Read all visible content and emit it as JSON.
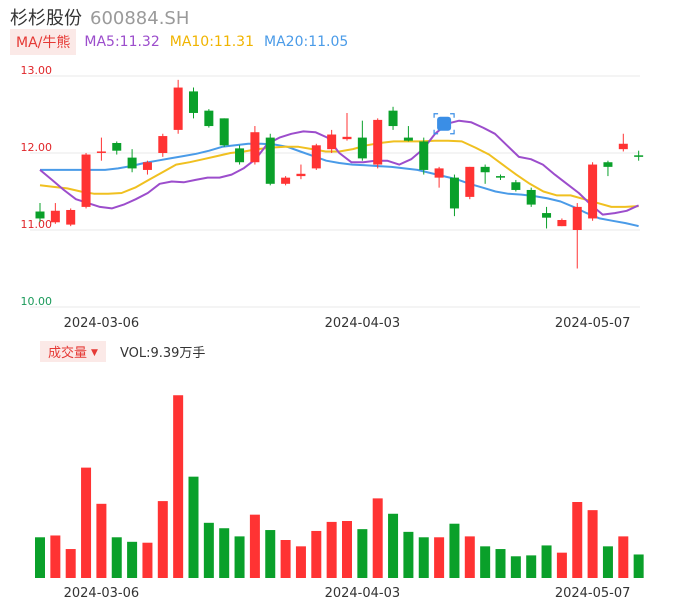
{
  "header": {
    "name": "杉杉股份",
    "code": "600884.SH"
  },
  "ma_legend": {
    "tag": "MA/牛熊",
    "ma5": "MA5:11.32",
    "ma10": "MA10:11.31",
    "ma20": "MA20:11.05"
  },
  "volume_legend": {
    "tag": "成交量",
    "vol": "VOL:9.39万手"
  },
  "colors": {
    "up": "#ff3333",
    "down": "#0aa02a",
    "ma5": "#9c4dcc",
    "ma10": "#f0c020",
    "ma20": "#4a9be8",
    "grid": "#e8e8e8",
    "axis_label": "#e0262a"
  },
  "chart_data": [
    {
      "type": "candlestick",
      "y_ticks": [
        "13.00",
        "12.00",
        "11.00",
        "10.00"
      ],
      "y_tick_values": [
        13,
        12,
        11,
        10
      ],
      "ylim": [
        10,
        13
      ],
      "x_ticks": [
        {
          "index": 4,
          "label": "2024-03-06"
        },
        {
          "index": 21,
          "label": "2024-04-03"
        },
        {
          "index": 36,
          "label": "2024-05-07"
        }
      ],
      "candles": [
        [
          11.24,
          11.15,
          11.35,
          11.1
        ],
        [
          11.1,
          11.25,
          11.35,
          11.08
        ],
        [
          11.07,
          11.26,
          11.28,
          11.05
        ],
        [
          11.3,
          11.98,
          12.0,
          11.28
        ],
        [
          12.02,
          12.02,
          12.2,
          11.9
        ],
        [
          12.13,
          12.03,
          12.15,
          11.98
        ],
        [
          11.94,
          11.8,
          12.05,
          11.75
        ],
        [
          11.78,
          11.88,
          11.9,
          11.72
        ],
        [
          12.0,
          12.22,
          12.25,
          11.95
        ],
        [
          12.3,
          12.85,
          12.95,
          12.25
        ],
        [
          12.8,
          12.52,
          12.85,
          12.45
        ],
        [
          12.55,
          12.35,
          12.57,
          12.33
        ],
        [
          12.45,
          12.1,
          12.45,
          12.08
        ],
        [
          12.06,
          11.88,
          12.1,
          11.85
        ],
        [
          11.88,
          12.27,
          12.35,
          11.85
        ],
        [
          12.2,
          11.6,
          12.25,
          11.58
        ],
        [
          11.6,
          11.68,
          11.7,
          11.58
        ],
        [
          11.7,
          11.73,
          11.85,
          11.66
        ],
        [
          11.8,
          12.1,
          12.12,
          11.78
        ],
        [
          12.05,
          12.24,
          12.3,
          12.0
        ],
        [
          12.18,
          12.21,
          12.52,
          12.16
        ],
        [
          12.2,
          11.93,
          12.42,
          11.9
        ],
        [
          11.85,
          12.43,
          12.45,
          11.8
        ],
        [
          12.55,
          12.35,
          12.6,
          12.3
        ],
        [
          12.2,
          12.16,
          12.35,
          12.15
        ],
        [
          12.15,
          11.78,
          12.2,
          11.72
        ],
        [
          11.68,
          11.8,
          11.82,
          11.55
        ],
        [
          11.68,
          11.28,
          11.72,
          11.18
        ],
        [
          11.43,
          11.82,
          11.82,
          11.4
        ],
        [
          11.82,
          11.75,
          11.85,
          11.6
        ],
        [
          11.7,
          11.68,
          11.72,
          11.65
        ],
        [
          11.62,
          11.52,
          11.65,
          11.5
        ],
        [
          11.52,
          11.33,
          11.55,
          11.3
        ],
        [
          11.22,
          11.16,
          11.3,
          11.02
        ],
        [
          11.05,
          11.13,
          11.15,
          11.05
        ],
        [
          11.0,
          11.3,
          11.35,
          10.5
        ],
        [
          11.15,
          11.85,
          11.88,
          11.12
        ],
        [
          11.88,
          11.82,
          11.9,
          11.7
        ],
        [
          12.05,
          12.12,
          12.25,
          12.02
        ],
        [
          11.97,
          11.95,
          12.03,
          11.9
        ]
      ],
      "ma5": [
        11.78,
        11.65,
        11.52,
        11.4,
        11.35,
        11.3,
        11.28,
        11.33,
        11.4,
        11.48,
        11.6,
        11.63,
        11.62,
        11.65,
        11.68,
        11.68,
        11.72,
        11.8,
        11.92,
        12.12,
        12.2,
        12.25,
        12.28,
        12.27,
        12.2,
        12.0,
        11.88,
        11.88,
        11.9,
        11.9,
        11.85,
        11.92,
        12.05,
        12.25,
        12.38,
        12.42,
        12.4,
        12.33,
        12.25,
        12.1,
        11.95,
        11.92,
        11.85,
        11.72,
        11.6,
        11.48,
        11.33,
        11.2,
        11.22,
        11.25,
        11.32
      ],
      "ma10": [
        11.58,
        11.56,
        11.54,
        11.5,
        11.47,
        11.47,
        11.48,
        11.55,
        11.65,
        11.75,
        11.85,
        11.88,
        11.92,
        11.96,
        12.0,
        12.02,
        12.05,
        12.07,
        12.08,
        12.08,
        12.05,
        12.02,
        12.02,
        12.05,
        12.1,
        12.13,
        12.15,
        12.15,
        12.15,
        12.16,
        12.16,
        12.15,
        12.07,
        11.98,
        11.85,
        11.72,
        11.6,
        11.5,
        11.45,
        11.45,
        11.4,
        11.35,
        11.3,
        11.3,
        11.31
      ],
      "ma20": [
        11.78,
        11.78,
        11.78,
        11.78,
        11.78,
        11.78,
        11.8,
        11.83,
        11.87,
        11.9,
        11.93,
        11.96,
        11.99,
        12.03,
        12.08,
        12.1,
        12.12,
        12.12,
        12.11,
        12.08,
        12.02,
        11.96,
        11.9,
        11.87,
        11.85,
        11.84,
        11.83,
        11.82,
        11.8,
        11.78,
        11.74,
        11.7,
        11.66,
        11.6,
        11.55,
        11.5,
        11.47,
        11.46,
        11.44,
        11.41,
        11.37,
        11.3,
        11.22,
        11.15,
        11.12,
        11.09,
        11.05
      ],
      "marker_index": 26
    },
    {
      "type": "bar",
      "series": "volume",
      "values": [
        45,
        47,
        32,
        122,
        82,
        45,
        40,
        39,
        85,
        202,
        112,
        61,
        55,
        46,
        70,
        53,
        42,
        35,
        52,
        62,
        63,
        54,
        88,
        71,
        51,
        45,
        45,
        60,
        46,
        35,
        32,
        24,
        25,
        36,
        28,
        84,
        75,
        35,
        46,
        26
      ],
      "ylim": [
        0,
        210
      ]
    }
  ]
}
